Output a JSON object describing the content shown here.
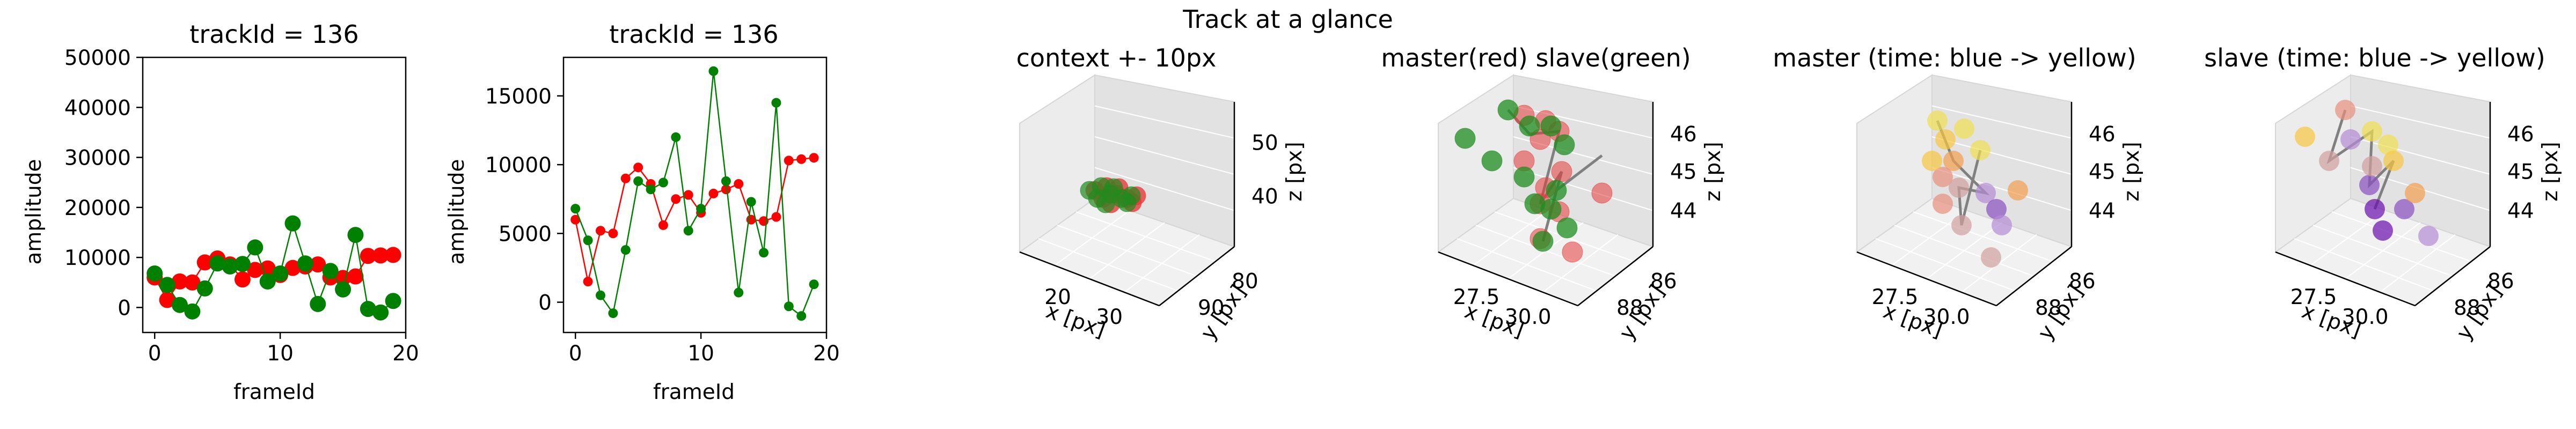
{
  "figure": {
    "suptitle": "Track at a glance"
  },
  "colors": {
    "red": "#ff0000",
    "green": "#008000",
    "gray": "#808080",
    "red3d": "#e83a3a",
    "green3d": "#1e8c1e",
    "viridis_like": [
      "#6a0dad",
      "#8a4fc0",
      "#b48bd6",
      "#d2a0a0",
      "#e8907c",
      "#f4a050",
      "#f8c840",
      "#f0e050"
    ]
  },
  "chart_data": [
    {
      "type": "line",
      "title": "trackId = 136",
      "xlabel": "frameId",
      "ylabel": "amplitude",
      "xlim": [
        -0.95,
        20.0
      ],
      "ylim": [
        -5000,
        50000
      ],
      "xticks": [
        0,
        10,
        20
      ],
      "yticks": [
        0,
        10000,
        20000,
        30000,
        40000,
        50000
      ],
      "x": [
        0,
        1,
        2,
        3,
        4,
        5,
        6,
        7,
        8,
        9,
        10,
        11,
        12,
        13,
        14,
        15,
        16,
        17,
        18,
        19
      ],
      "series": [
        {
          "color": "red",
          "values": [
            6000,
            1500,
            5200,
            5000,
            9000,
            9800,
            8600,
            5600,
            7500,
            7800,
            6500,
            7900,
            8200,
            8600,
            6000,
            5900,
            6200,
            10300,
            10400,
            10500
          ]
        },
        {
          "color": "green",
          "values": [
            6800,
            4500,
            500,
            -800,
            3800,
            8800,
            8200,
            8700,
            12000,
            5200,
            6800,
            16800,
            8800,
            700,
            7300,
            3600,
            14500,
            -300,
            -1000,
            1300
          ]
        }
      ]
    },
    {
      "type": "line",
      "title": "trackId = 136",
      "xlabel": "frameId",
      "ylabel": "amplitude",
      "xlim": [
        -0.95,
        20.0
      ],
      "ylim": [
        -2200,
        17800
      ],
      "xticks": [
        0,
        10,
        20
      ],
      "yticks": [
        0,
        5000,
        10000,
        15000
      ],
      "x": [
        0,
        1,
        2,
        3,
        4,
        5,
        6,
        7,
        8,
        9,
        10,
        11,
        12,
        13,
        14,
        15,
        16,
        17,
        18,
        19
      ],
      "series": [
        {
          "color": "red",
          "values": [
            6000,
            1500,
            5200,
            5000,
            9000,
            9800,
            8600,
            5600,
            7500,
            7800,
            6500,
            7900,
            8200,
            8600,
            6000,
            5900,
            6200,
            10300,
            10400,
            10500
          ]
        },
        {
          "color": "green",
          "values": [
            6800,
            4500,
            500,
            -800,
            3800,
            8800,
            8200,
            8700,
            12000,
            5200,
            6800,
            16800,
            8800,
            700,
            7300,
            3600,
            14500,
            -300,
            -1000,
            1300
          ]
        }
      ]
    },
    {
      "type": "scatter",
      "title": "context +- 10px",
      "xlabel": "x [px]",
      "ylabel": "y [px]",
      "zlabel": "z [px]",
      "xticks": [
        "20",
        "30"
      ],
      "yticks": [
        "80",
        "90"
      ],
      "zticks": [
        "40",
        "50"
      ]
    },
    {
      "type": "scatter",
      "title": "master(red) slave(green)",
      "xlabel": "x [px]",
      "ylabel": "y [px]",
      "zlabel": "z [px]",
      "xticks": [
        "27.5",
        "30.0"
      ],
      "yticks": [
        "86",
        "88"
      ],
      "zticks": [
        "44",
        "45",
        "46"
      ]
    },
    {
      "type": "scatter",
      "title": "master (time: blue -> yellow)",
      "xlabel": "x [px]",
      "ylabel": "y [px]",
      "zlabel": "z [px]",
      "xticks": [
        "27.5",
        "30.0"
      ],
      "yticks": [
        "86",
        "88"
      ],
      "zticks": [
        "44",
        "45",
        "46"
      ]
    },
    {
      "type": "scatter",
      "title": "slave (time: blue -> yellow)",
      "xlabel": "x [px]",
      "ylabel": "y [px]",
      "zlabel": "z [px]",
      "xticks": [
        "27.5",
        "30.0"
      ],
      "yticks": [
        "86",
        "88"
      ],
      "zticks": [
        "44",
        "45",
        "46"
      ]
    }
  ]
}
